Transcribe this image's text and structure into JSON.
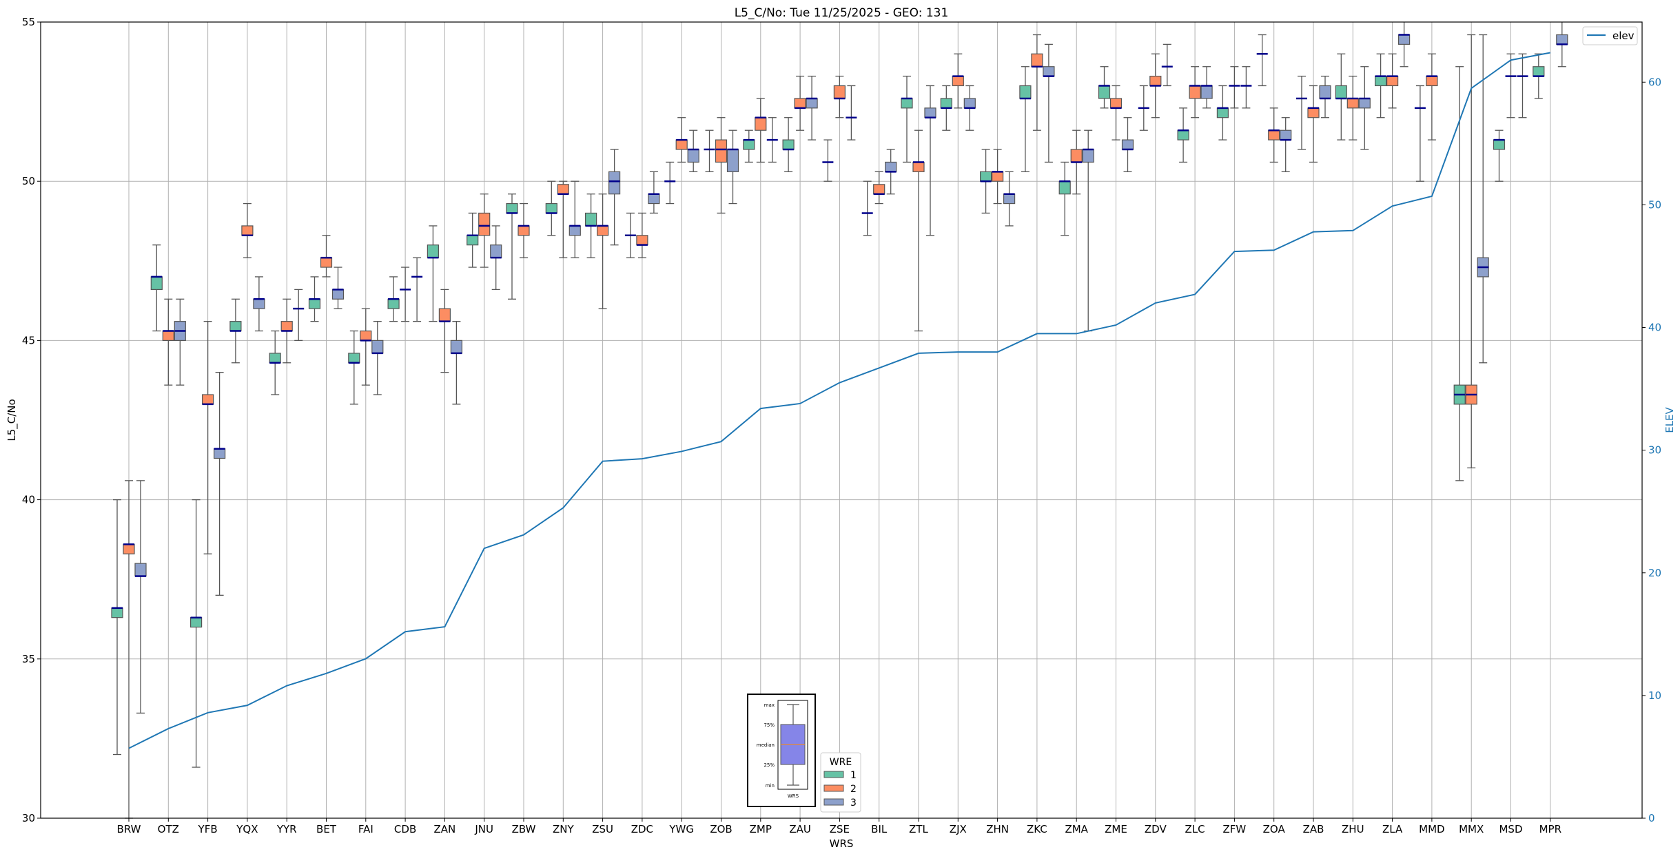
{
  "chart_data": {
    "type": "box",
    "title": "L5_C/No: Tue 11/25/2025 - GEO: 131",
    "xlabel": "WRS",
    "ylabel": "L5_C/No",
    "y2label": "ELEV",
    "ylim": [
      30,
      55
    ],
    "y2lim": [
      0,
      64.9
    ],
    "yticks": [
      30,
      35,
      40,
      45,
      50,
      55
    ],
    "y2ticks": [
      0,
      10,
      20,
      30,
      40,
      50,
      60
    ],
    "grid": true,
    "colors": {
      "1": "#66c2a5",
      "2": "#fc8d62",
      "3": "#8da0cb",
      "median": "#00008b",
      "elev": "#1f77b4",
      "whisker": "#555555"
    },
    "legend_wre": {
      "title": "WRE",
      "entries": [
        "1",
        "2",
        "3"
      ],
      "placement": "bottom-center"
    },
    "legend_elev": {
      "label": "elev",
      "placement": "top-right"
    },
    "inset_legend": {
      "labels": [
        "max",
        "75%",
        "median",
        "25%",
        "min"
      ],
      "xlabel": "WRS"
    },
    "box_format": "[min, q1, median, q3, max]",
    "categories": [
      "BRW",
      "OTZ",
      "YFB",
      "YQX",
      "YYR",
      "BET",
      "FAI",
      "CDB",
      "ZAN",
      "JNU",
      "ZBW",
      "ZNY",
      "ZSU",
      "ZDC",
      "YWG",
      "ZOB",
      "ZMP",
      "ZAU",
      "ZSE",
      "BIL",
      "ZTL",
      "ZJX",
      "ZHN",
      "ZKC",
      "ZMA",
      "ZME",
      "ZDV",
      "ZLC",
      "ZFW",
      "ZOA",
      "ZAB",
      "ZHU",
      "ZLA",
      "MMD",
      "MMX",
      "MSD",
      "MPR"
    ],
    "elev": [
      5.7,
      7.3,
      8.6,
      9.2,
      10.8,
      11.8,
      13.0,
      15.2,
      15.6,
      22.0,
      23.1,
      25.3,
      29.1,
      29.3,
      29.9,
      30.7,
      33.4,
      33.8,
      35.5,
      36.7,
      37.9,
      38.0,
      38.0,
      39.5,
      39.5,
      40.2,
      42.0,
      42.7,
      46.2,
      46.3,
      47.8,
      47.9,
      49.9,
      50.7,
      59.5,
      61.8,
      62.4
    ],
    "series": [
      {
        "name": "1",
        "boxes": [
          [
            32.0,
            36.3,
            36.6,
            36.6,
            40.0
          ],
          [
            45.3,
            46.6,
            47.0,
            47.0,
            48.0
          ],
          [
            31.6,
            36.0,
            36.3,
            36.3,
            40.0
          ],
          [
            44.3,
            45.3,
            45.3,
            45.6,
            46.3
          ],
          [
            43.3,
            44.3,
            44.3,
            44.6,
            45.3
          ],
          [
            45.6,
            46.0,
            46.3,
            46.3,
            47.0
          ],
          [
            43.0,
            44.3,
            44.3,
            44.6,
            45.3
          ],
          [
            45.6,
            46.0,
            46.3,
            46.3,
            47.0
          ],
          [
            45.6,
            47.6,
            47.6,
            48.0,
            48.6
          ],
          [
            47.3,
            48.0,
            48.3,
            48.3,
            49.0
          ],
          [
            46.3,
            49.0,
            49.0,
            49.3,
            49.6
          ],
          [
            48.3,
            49.0,
            49.0,
            49.3,
            50.0
          ],
          [
            47.6,
            48.6,
            48.6,
            49.0,
            49.6
          ],
          [
            47.6,
            48.3,
            48.3,
            48.3,
            49.0
          ],
          [
            49.3,
            50.0,
            50.0,
            50.0,
            50.6
          ],
          [
            50.3,
            51.0,
            51.0,
            51.0,
            51.6
          ],
          [
            50.6,
            51.0,
            51.3,
            51.3,
            51.6
          ],
          [
            50.3,
            51.0,
            51.0,
            51.3,
            52.0
          ],
          [
            50.0,
            50.6,
            50.6,
            50.6,
            51.3
          ],
          [
            48.3,
            49.0,
            49.0,
            49.0,
            50.0
          ],
          [
            50.6,
            52.3,
            52.6,
            52.6,
            53.3
          ],
          [
            51.6,
            52.3,
            52.3,
            52.6,
            53.0
          ],
          [
            49.0,
            50.0,
            50.0,
            50.3,
            51.0
          ],
          [
            50.3,
            52.6,
            52.6,
            53.0,
            53.6
          ],
          [
            48.3,
            49.6,
            50.0,
            50.0,
            50.6
          ],
          [
            52.3,
            52.6,
            53.0,
            53.0,
            53.6
          ],
          [
            51.6,
            52.3,
            52.3,
            52.3,
            53.0
          ],
          [
            50.6,
            51.3,
            51.6,
            51.6,
            52.3
          ],
          [
            51.3,
            52.0,
            52.3,
            52.3,
            53.0
          ],
          [
            53.0,
            54.0,
            54.0,
            54.0,
            54.6
          ],
          [
            51.0,
            52.6,
            52.6,
            52.6,
            53.3
          ],
          [
            51.3,
            52.6,
            52.6,
            53.0,
            54.0
          ],
          [
            52.0,
            53.0,
            53.3,
            53.3,
            54.0
          ],
          [
            50.0,
            52.3,
            52.3,
            52.3,
            53.0
          ],
          [
            40.6,
            43.0,
            43.3,
            43.6,
            53.6
          ],
          [
            50.0,
            51.0,
            51.3,
            51.3,
            51.6
          ],
          [
            52.6,
            53.3,
            53.3,
            53.6,
            54.0
          ]
        ]
      },
      {
        "name": "2",
        "boxes": [
          [
            30.0,
            38.3,
            38.6,
            38.6,
            40.6
          ],
          [
            43.6,
            45.0,
            45.3,
            45.3,
            46.3
          ],
          [
            38.3,
            43.0,
            43.0,
            43.3,
            45.6
          ],
          [
            47.6,
            48.3,
            48.3,
            48.6,
            49.3
          ],
          [
            44.3,
            45.3,
            45.3,
            45.6,
            46.3
          ],
          [
            47.0,
            47.3,
            47.6,
            47.6,
            48.3
          ],
          [
            43.6,
            45.0,
            45.0,
            45.3,
            46.0
          ],
          [
            45.6,
            46.6,
            46.6,
            46.6,
            47.3
          ],
          [
            44.0,
            45.6,
            45.6,
            46.0,
            46.6
          ],
          [
            47.3,
            48.3,
            48.6,
            49.0,
            49.6
          ],
          [
            47.6,
            48.3,
            48.6,
            48.6,
            49.3
          ],
          [
            47.6,
            49.6,
            49.6,
            49.9,
            50.0
          ],
          [
            46.0,
            48.3,
            48.6,
            48.6,
            49.6
          ],
          [
            47.6,
            48.0,
            48.0,
            48.3,
            49.0
          ],
          [
            50.6,
            51.0,
            51.3,
            51.3,
            52.0
          ],
          [
            49.0,
            50.6,
            51.0,
            51.3,
            52.0
          ],
          [
            50.6,
            51.6,
            52.0,
            52.0,
            52.6
          ],
          [
            51.6,
            52.3,
            52.3,
            52.6,
            53.3
          ],
          [
            52.0,
            52.6,
            52.6,
            53.0,
            53.3
          ],
          [
            49.3,
            49.6,
            49.6,
            49.9,
            50.3
          ],
          [
            45.3,
            50.3,
            50.6,
            50.6,
            51.6
          ],
          [
            52.3,
            53.0,
            53.3,
            53.3,
            54.0
          ],
          [
            49.3,
            50.0,
            50.3,
            50.3,
            51.0
          ],
          [
            51.6,
            53.6,
            53.6,
            54.0,
            54.6
          ],
          [
            49.6,
            50.6,
            50.6,
            51.0,
            51.6
          ],
          [
            51.3,
            52.3,
            52.3,
            52.6,
            53.0
          ],
          [
            52.0,
            53.0,
            53.0,
            53.3,
            54.0
          ],
          [
            52.0,
            52.6,
            53.0,
            53.0,
            53.6
          ],
          [
            52.3,
            53.0,
            53.0,
            53.0,
            53.6
          ],
          [
            50.6,
            51.3,
            51.6,
            51.6,
            52.3
          ],
          [
            50.6,
            52.0,
            52.3,
            52.3,
            53.0
          ],
          [
            51.3,
            52.3,
            52.6,
            52.6,
            53.3
          ],
          [
            52.3,
            53.0,
            53.3,
            53.3,
            54.0
          ],
          [
            51.3,
            53.0,
            53.3,
            53.3,
            54.0
          ],
          [
            41.0,
            43.0,
            43.3,
            43.6,
            54.6
          ],
          [
            52.0,
            53.3,
            53.3,
            53.3,
            54.0
          ],
          null
        ]
      },
      {
        "name": "3",
        "boxes": [
          [
            33.3,
            37.6,
            37.6,
            38.0,
            40.6
          ],
          [
            43.6,
            45.0,
            45.3,
            45.6,
            46.3
          ],
          [
            37.0,
            41.3,
            41.6,
            41.6,
            44.0
          ],
          [
            45.3,
            46.0,
            46.3,
            46.3,
            47.0
          ],
          [
            45.0,
            46.0,
            46.0,
            46.0,
            46.6
          ],
          [
            46.0,
            46.3,
            46.6,
            46.6,
            47.3
          ],
          [
            43.3,
            44.6,
            44.6,
            45.0,
            45.6
          ],
          [
            45.6,
            47.0,
            47.0,
            47.0,
            47.6
          ],
          [
            43.0,
            44.6,
            44.6,
            45.0,
            45.6
          ],
          [
            46.6,
            47.6,
            47.6,
            48.0,
            48.6
          ],
          null,
          [
            47.6,
            48.3,
            48.6,
            48.6,
            50.0
          ],
          [
            48.0,
            49.6,
            50.0,
            50.3,
            51.0
          ],
          [
            49.0,
            49.3,
            49.6,
            49.6,
            50.3
          ],
          [
            50.3,
            50.6,
            51.0,
            51.0,
            51.6
          ],
          [
            49.3,
            50.3,
            51.0,
            51.0,
            51.6
          ],
          [
            50.6,
            51.3,
            51.3,
            51.3,
            52.0
          ],
          [
            51.3,
            52.3,
            52.6,
            52.6,
            53.3
          ],
          [
            51.3,
            52.0,
            52.0,
            52.0,
            53.0
          ],
          [
            49.6,
            50.3,
            50.3,
            50.6,
            51.0
          ],
          [
            48.3,
            52.0,
            52.0,
            52.3,
            53.0
          ],
          [
            51.6,
            52.3,
            52.3,
            52.6,
            53.0
          ],
          [
            48.6,
            49.3,
            49.6,
            49.6,
            50.3
          ],
          [
            50.6,
            53.3,
            53.3,
            53.6,
            54.3
          ],
          [
            45.3,
            50.6,
            51.0,
            51.0,
            51.6
          ],
          [
            50.3,
            51.0,
            51.0,
            51.3,
            52.0
          ],
          [
            53.0,
            53.6,
            53.6,
            53.6,
            54.3
          ],
          [
            52.3,
            52.6,
            53.0,
            53.0,
            53.6
          ],
          [
            52.3,
            53.0,
            53.0,
            53.0,
            53.6
          ],
          [
            50.3,
            51.3,
            51.3,
            51.6,
            52.0
          ],
          [
            52.0,
            52.6,
            52.6,
            53.0,
            53.3
          ],
          [
            51.0,
            52.3,
            52.6,
            52.6,
            53.6
          ],
          [
            53.6,
            54.3,
            54.6,
            54.6,
            55.2
          ],
          null,
          [
            44.3,
            47.0,
            47.3,
            47.6,
            54.6
          ],
          [
            52.0,
            53.3,
            53.3,
            53.3,
            54.0
          ],
          [
            53.6,
            54.3,
            54.3,
            54.6,
            55.2
          ]
        ]
      }
    ]
  }
}
